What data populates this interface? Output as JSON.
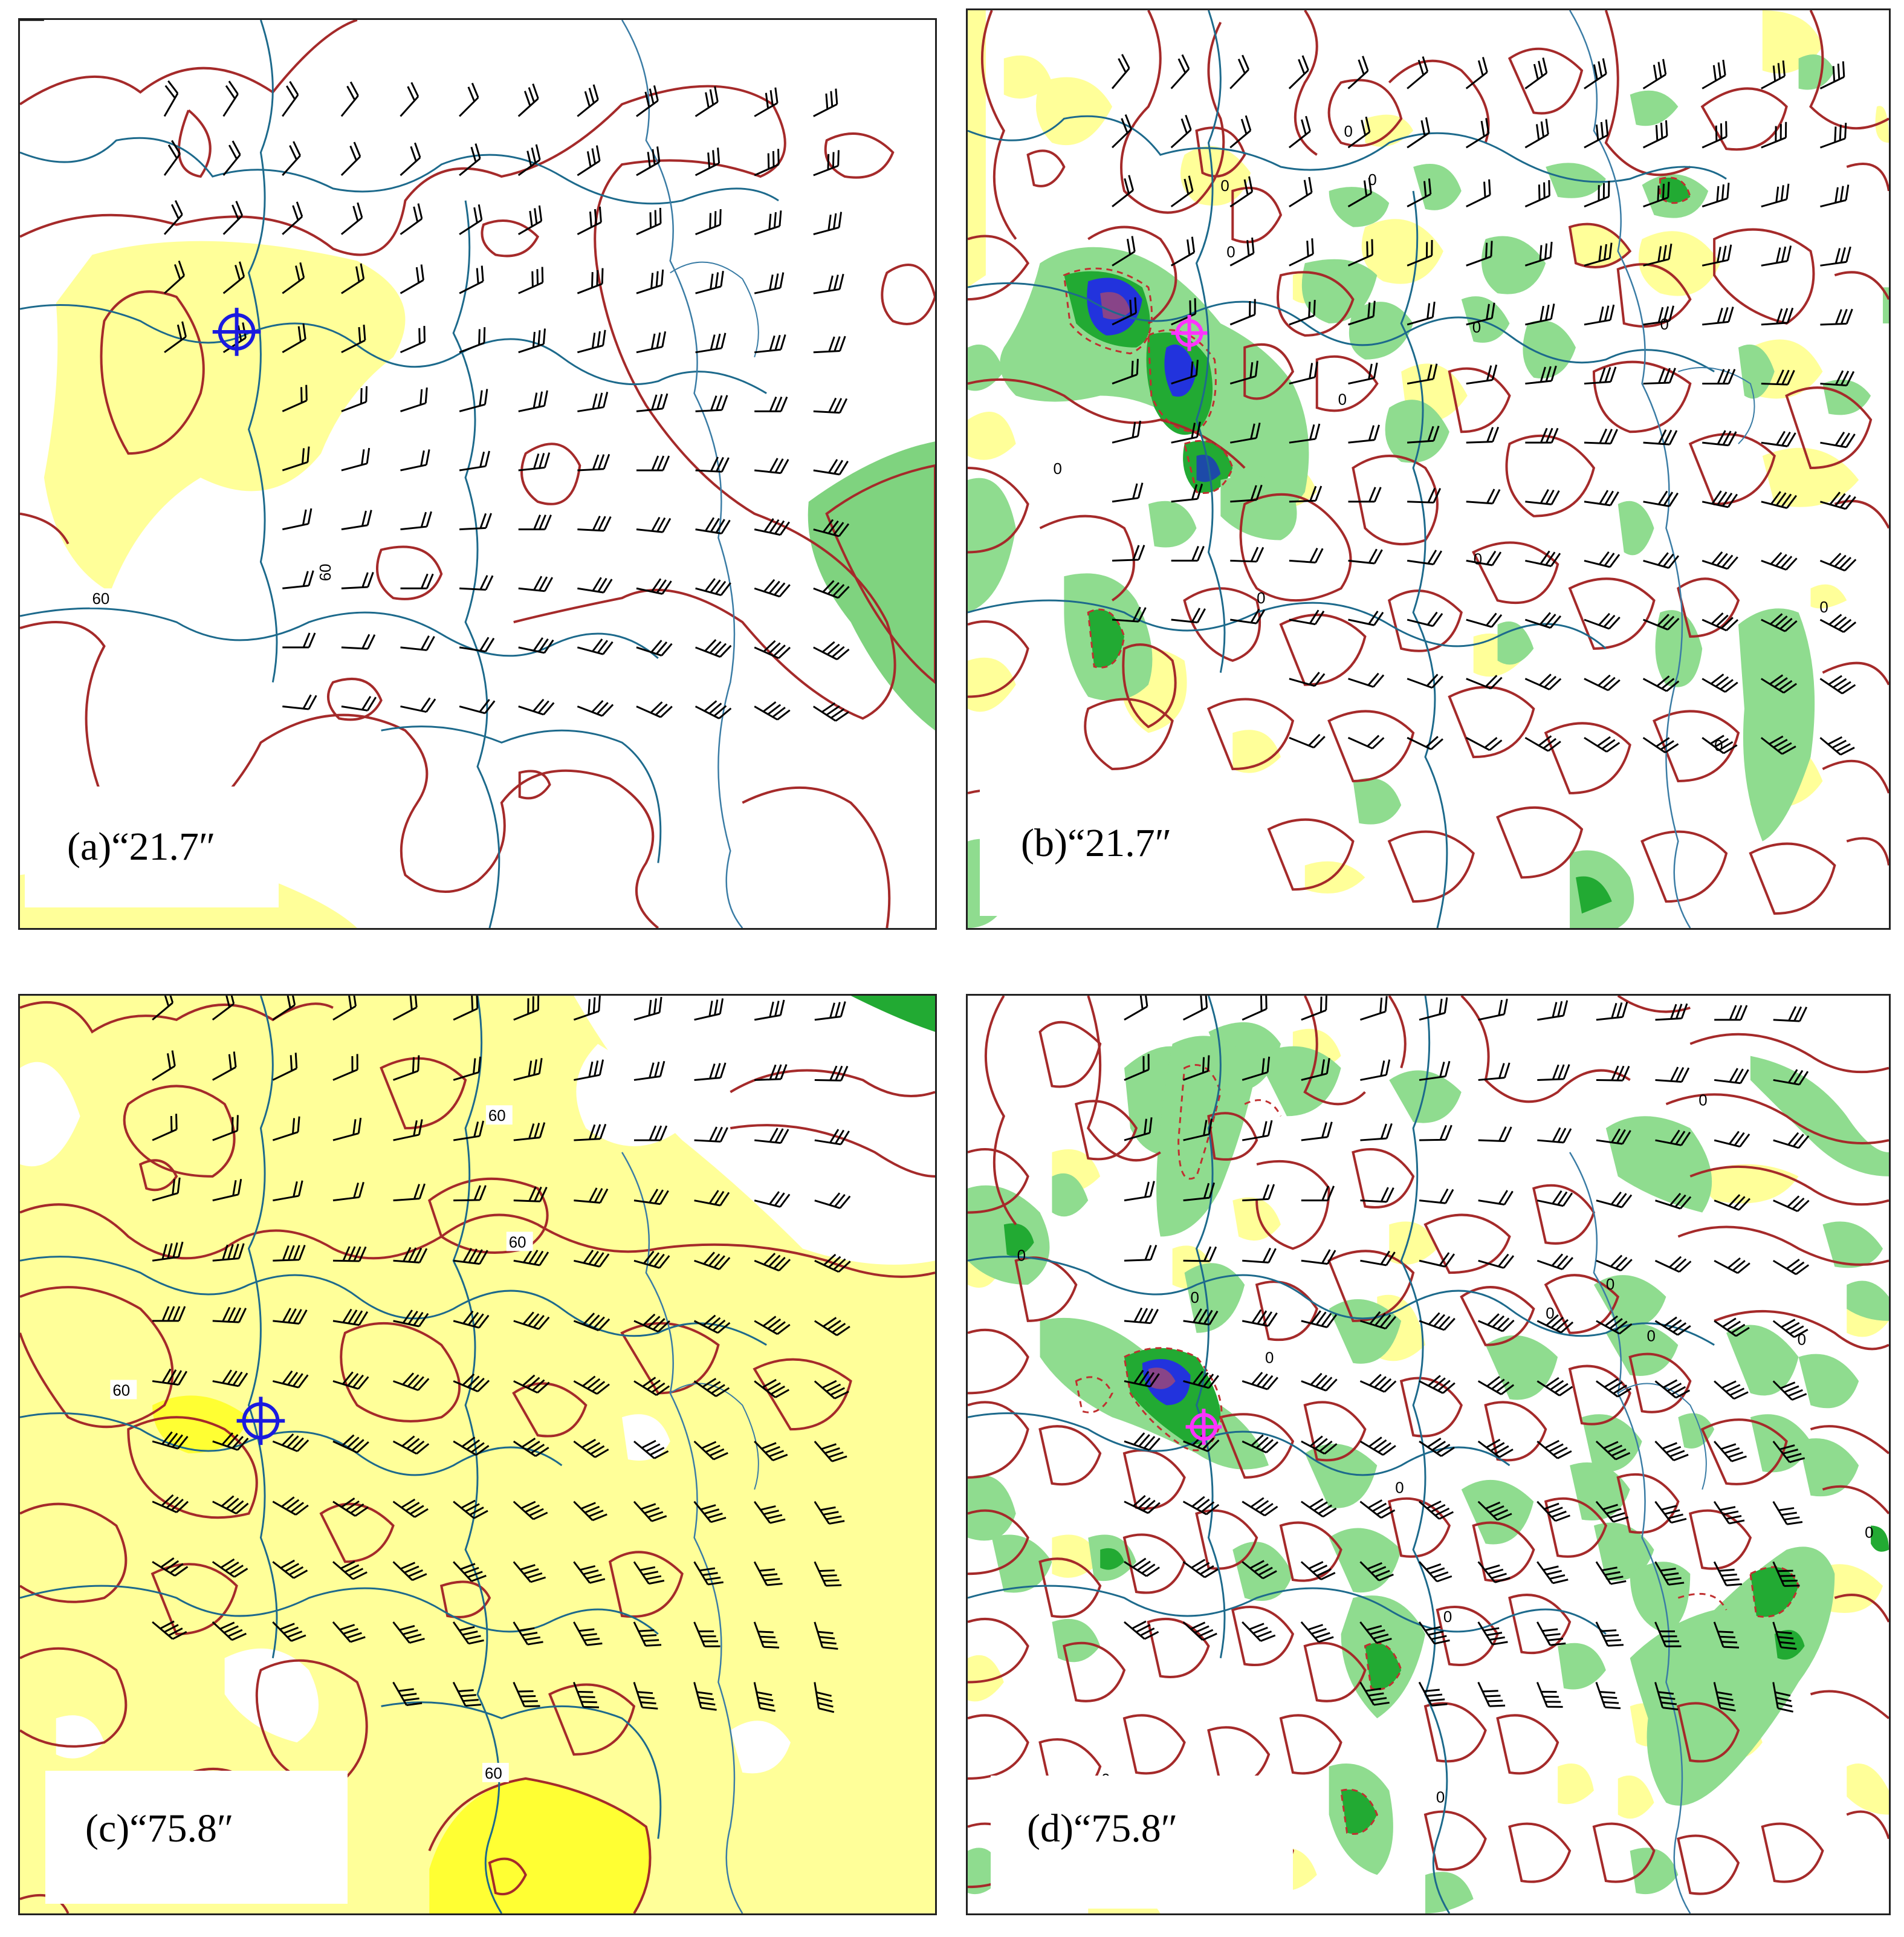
{
  "panels": [
    {
      "id": "a",
      "caption": "(a)“21.7″",
      "marker_color": "#1a1adf"
    },
    {
      "id": "b",
      "caption": "(b)“21.7″",
      "marker_color": "#ff33ff"
    },
    {
      "id": "c",
      "caption": "(c)“75.8″",
      "marker_color": "#1a1adf"
    },
    {
      "id": "d",
      "caption": "(d)“75.8″",
      "marker_color": "#ff33ff"
    }
  ],
  "contour_labels": {
    "a": [
      "60",
      "60"
    ],
    "b": [
      "0",
      "0",
      "0",
      "0",
      "0",
      "0",
      "0",
      "0",
      "0",
      "0",
      "0",
      "0"
    ],
    "c": [
      "60",
      "60",
      "60",
      "60",
      "60"
    ],
    "d": [
      "0",
      "0",
      "0",
      "0",
      "0",
      "0",
      "0",
      "0",
      "0",
      "0",
      "0",
      "0",
      "0"
    ]
  },
  "colors": {
    "contour": "#a52a2a",
    "boundary": "#1d6a8c",
    "coast": "#3a7ca5",
    "yellow_fill": "#ffff99",
    "yellow_strong": "#ffff33",
    "green_light": "#8fdc8f",
    "green_dark": "#22aa33",
    "blue_core": "#2233dd",
    "barb": "#000000"
  }
}
